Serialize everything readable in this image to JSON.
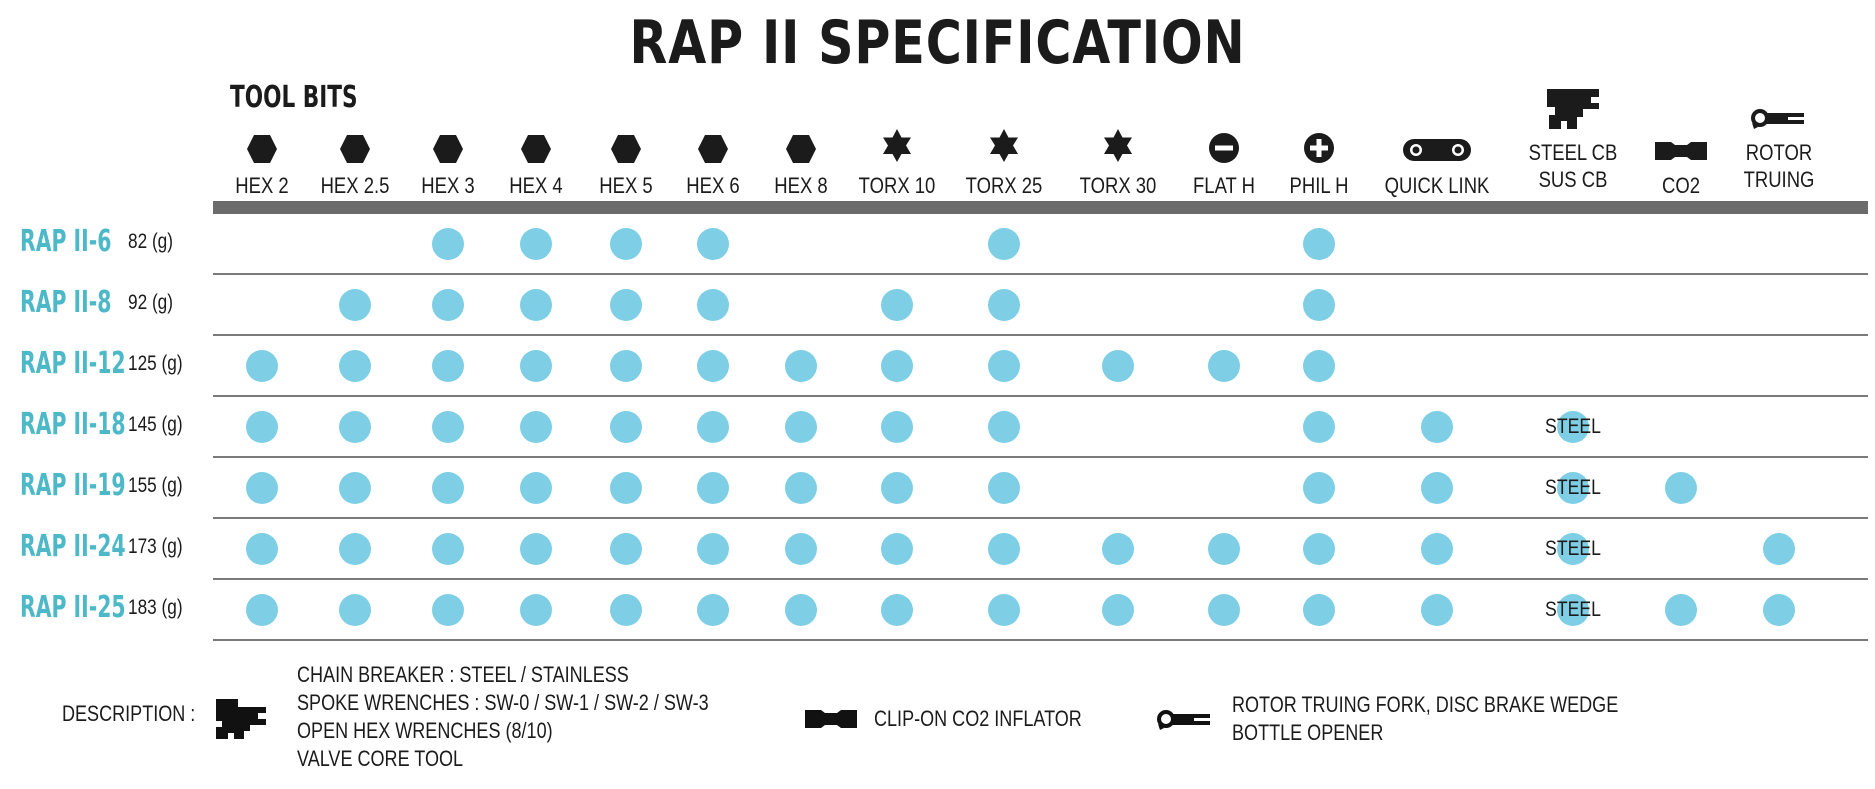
{
  "title": "RAP II SPECIFICATION",
  "section_label": "TOOL BITS",
  "colors": {
    "accent": "#4cb8c8",
    "dot": "#7ecfe6",
    "bar": "#6b6b6b",
    "text": "#1b1b1b"
  },
  "columns": [
    {
      "key": "hex2",
      "label": "HEX 2",
      "icon": "hexagon-icon"
    },
    {
      "key": "hex25",
      "label": "HEX 2.5",
      "icon": "hexagon-icon"
    },
    {
      "key": "hex3",
      "label": "HEX 3",
      "icon": "hexagon-icon"
    },
    {
      "key": "hex4",
      "label": "HEX 4",
      "icon": "hexagon-icon"
    },
    {
      "key": "hex5",
      "label": "HEX 5",
      "icon": "hexagon-icon"
    },
    {
      "key": "hex6",
      "label": "HEX 6",
      "icon": "hexagon-icon"
    },
    {
      "key": "hex8",
      "label": "HEX 8",
      "icon": "hexagon-icon"
    },
    {
      "key": "torx10",
      "label": "TORX 10",
      "icon": "torx-star-icon"
    },
    {
      "key": "torx25",
      "label": "TORX 25",
      "icon": "torx-star-icon"
    },
    {
      "key": "torx30",
      "label": "TORX 30",
      "icon": "torx-star-icon"
    },
    {
      "key": "flath",
      "label": "FLAT H",
      "icon": "flat-head-icon"
    },
    {
      "key": "philh",
      "label": "PHIL H",
      "icon": "phillips-head-icon"
    },
    {
      "key": "quicklink",
      "label": "QUICK LINK",
      "icon": "quick-link-icon"
    },
    {
      "key": "steelcb",
      "label": "STEEL CB",
      "label2": "SUS CB",
      "icon": "chain-breaker-icon"
    },
    {
      "key": "co2",
      "label": "CO2",
      "icon": "co2-inflator-icon"
    },
    {
      "key": "rotor",
      "label": "ROTOR",
      "label2": "TRUING",
      "icon": "rotor-truing-icon"
    }
  ],
  "rows": [
    {
      "model": "RAP II-6",
      "weight": "82 (g)",
      "cells": [
        "",
        "",
        "dot",
        "dot",
        "dot",
        "dot",
        "",
        "",
        "dot",
        "",
        "",
        "dot",
        "",
        "",
        "",
        ""
      ]
    },
    {
      "model": "RAP II-8",
      "weight": "92 (g)",
      "cells": [
        "",
        "dot",
        "dot",
        "dot",
        "dot",
        "dot",
        "",
        "dot",
        "dot",
        "",
        "",
        "dot",
        "",
        "",
        "",
        ""
      ]
    },
    {
      "model": "RAP II-12",
      "weight": "125 (g)",
      "cells": [
        "dot",
        "dot",
        "dot",
        "dot",
        "dot",
        "dot",
        "dot",
        "dot",
        "dot",
        "dot",
        "dot",
        "dot",
        "",
        "",
        "",
        ""
      ]
    },
    {
      "model": "RAP II-18",
      "weight": "145 (g)",
      "cells": [
        "dot",
        "dot",
        "dot",
        "dot",
        "dot",
        "dot",
        "dot",
        "dot",
        "dot",
        "",
        "",
        "dot",
        "dot",
        "steel",
        "",
        ""
      ]
    },
    {
      "model": "RAP II-19",
      "weight": "155 (g)",
      "cells": [
        "dot",
        "dot",
        "dot",
        "dot",
        "dot",
        "dot",
        "dot",
        "dot",
        "dot",
        "",
        "",
        "dot",
        "dot",
        "steel",
        "dot",
        ""
      ]
    },
    {
      "model": "RAP II-24",
      "weight": "173 (g)",
      "cells": [
        "dot",
        "dot",
        "dot",
        "dot",
        "dot",
        "dot",
        "dot",
        "dot",
        "dot",
        "dot",
        "dot",
        "dot",
        "dot",
        "steel",
        "",
        "dot"
      ]
    },
    {
      "model": "RAP II-25",
      "weight": "183 (g)",
      "cells": [
        "dot",
        "dot",
        "dot",
        "dot",
        "dot",
        "dot",
        "dot",
        "dot",
        "dot",
        "dot",
        "dot",
        "dot",
        "dot",
        "steel",
        "dot",
        "dot"
      ]
    }
  ],
  "steel_text": "STEEL",
  "description": {
    "label": "DESCRIPTION :",
    "chain_breaker_lines": [
      "CHAIN BREAKER : STEEL / STAINLESS",
      "SPOKE WRENCHES : SW-0 / SW-1 / SW-2 / SW-3",
      "OPEN HEX WRENCHES (8/10)",
      "VALVE CORE TOOL"
    ],
    "co2_text": "CLIP-ON CO2 INFLATOR",
    "rotor_lines": [
      "ROTOR TRUING FORK, DISC BRAKE WEDGE",
      "BOTTLE OPENER"
    ]
  }
}
